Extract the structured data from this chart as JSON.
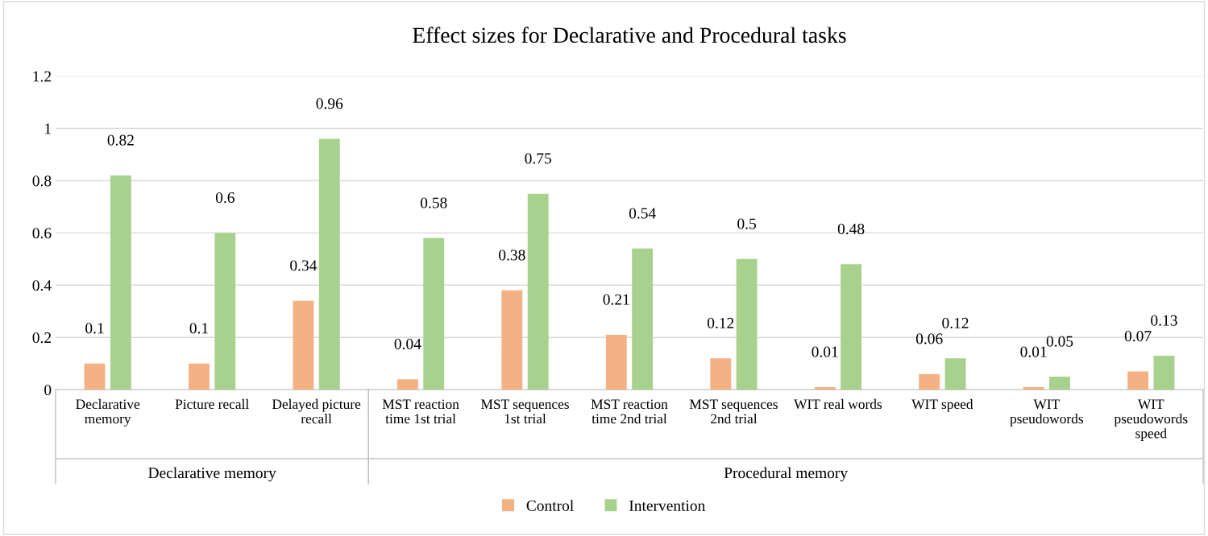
{
  "chart_data": {
    "type": "bar",
    "title": "Effect sizes for Declarative and Procedural tasks",
    "categories": [
      "Declarative memory",
      "Picture recall",
      "Delayed picture recall",
      "MST reaction time 1st trial",
      "MST sequences 1st trial",
      "MST reaction time 2nd trial",
      "MST sequences 2nd trial",
      "WIT real words",
      "WIT speed",
      "WIT pseudowords",
      "WIT pseudowords speed"
    ],
    "series": [
      {
        "name": "Control",
        "color": "#f4b183",
        "values": [
          0.1,
          0.1,
          0.34,
          0.04,
          0.38,
          0.21,
          0.12,
          0.01,
          0.06,
          0.01,
          0.07
        ]
      },
      {
        "name": "Intervention",
        "color": "#a9d18e",
        "values": [
          0.82,
          0.6,
          0.96,
          0.58,
          0.75,
          0.54,
          0.5,
          0.48,
          0.12,
          0.05,
          0.13
        ]
      }
    ],
    "ylim": [
      0,
      1.2
    ],
    "yticks": [
      0,
      0.2,
      0.4,
      0.6,
      0.8,
      1,
      1.2
    ],
    "grid": "y",
    "legend": "bottom",
    "data_labels": true,
    "annotations": [
      "Declarative memory",
      "Procedural memory"
    ]
  }
}
